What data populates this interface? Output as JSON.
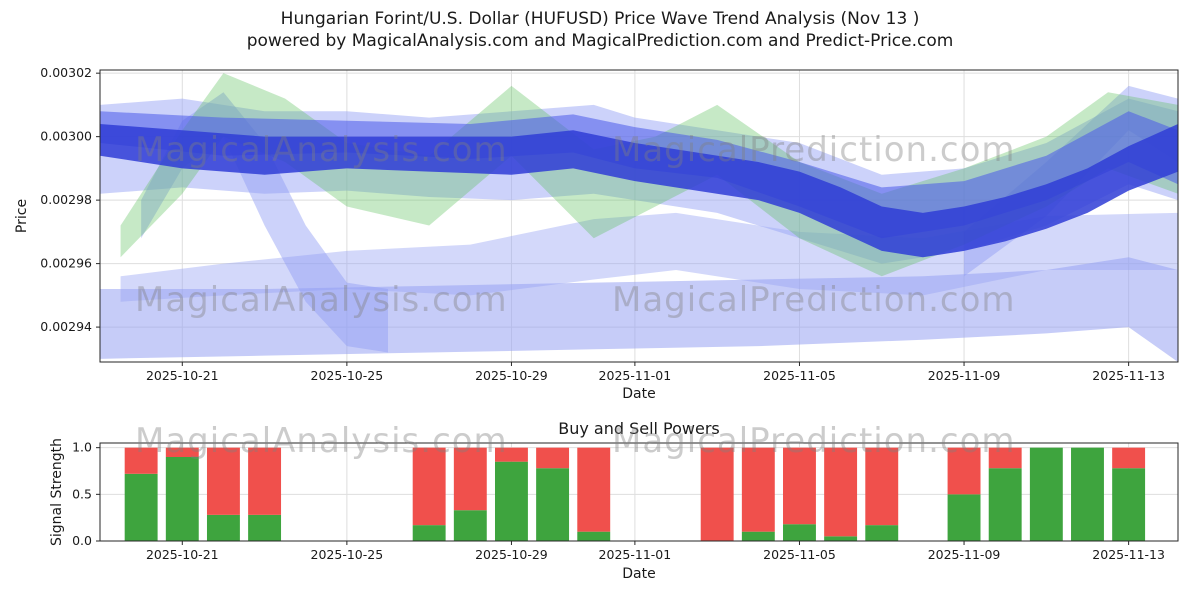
{
  "title": {
    "line1": "Hungarian Forint/U.S. Dollar (HUFUSD) Price Wave Trend Analysis (Nov 13 )",
    "line2": "powered by MagicalAnalysis.com and MagicalPrediction.com and Predict-Price.com"
  },
  "watermarks": {
    "left": "MagicalAnalysis.com",
    "right": "MagicalPrediction.com"
  },
  "chart_data": [
    {
      "type": "area",
      "title": "",
      "xlabel": "Date",
      "ylabel": "Price",
      "grid": true,
      "x_domain": [
        0,
        26.2
      ],
      "ylim": [
        0.002929,
        0.003021
      ],
      "y_ticks": [
        0.00294,
        0.00296,
        0.00298,
        0.003,
        0.00302
      ],
      "y_tick_labels": [
        "0.00294",
        "0.00296",
        "0.00298",
        "0.00300",
        "0.00302"
      ],
      "x_ticks": [
        {
          "day": 2,
          "label": "2025-10-21"
        },
        {
          "day": 6,
          "label": "2025-10-25"
        },
        {
          "day": 10,
          "label": "2025-10-29"
        },
        {
          "day": 13,
          "label": "2025-11-01"
        },
        {
          "day": 17,
          "label": "2025-11-05"
        },
        {
          "day": 21,
          "label": "2025-11-09"
        },
        {
          "day": 25,
          "label": "2025-11-13"
        }
      ],
      "bands": [
        {
          "name": "lower-forecast-band",
          "color": "#97a2f2",
          "opacity": 0.55,
          "points": [
            [
              0,
              0.00293,
              0.002952
            ],
            [
              4,
              0.002931,
              0.002952
            ],
            [
              8,
              0.002932,
              0.002953
            ],
            [
              12,
              0.002933,
              0.002954
            ],
            [
              16,
              0.002934,
              0.002955
            ],
            [
              20,
              0.002936,
              0.002956
            ],
            [
              23,
              0.002938,
              0.002958
            ],
            [
              25,
              0.00294,
              0.002962
            ],
            [
              26.2,
              0.002929,
              0.002958
            ]
          ]
        },
        {
          "name": "mid-wave-band",
          "color": "#97a2f2",
          "opacity": 0.42,
          "points": [
            [
              0.5,
              0.002948,
              0.002956
            ],
            [
              3,
              0.00295,
              0.00296
            ],
            [
              6,
              0.002952,
              0.002964
            ],
            [
              9,
              0.00295,
              0.002966
            ],
            [
              12,
              0.002955,
              0.002974
            ],
            [
              14,
              0.002958,
              0.002976
            ],
            [
              17,
              0.002952,
              0.00297
            ],
            [
              20,
              0.00295,
              0.002968
            ],
            [
              23,
              0.002958,
              0.002975
            ],
            [
              26.2,
              0.002958,
              0.002976
            ]
          ]
        },
        {
          "name": "outer-wave-band",
          "color": "#9aa6f5",
          "opacity": 0.5,
          "points": [
            [
              0,
              0.002982,
              0.00301
            ],
            [
              2,
              0.002984,
              0.003012
            ],
            [
              4,
              0.002982,
              0.003008
            ],
            [
              6,
              0.002983,
              0.003008
            ],
            [
              8,
              0.002981,
              0.003006
            ],
            [
              10,
              0.00298,
              0.003008
            ],
            [
              12,
              0.002982,
              0.00301
            ],
            [
              13,
              0.00298,
              0.003006
            ],
            [
              15,
              0.002976,
              0.003002
            ],
            [
              17,
              0.002968,
              0.002998
            ],
            [
              19,
              0.00296,
              0.002988
            ],
            [
              21,
              0.002964,
              0.00299
            ],
            [
              23,
              0.002972,
              0.002998
            ],
            [
              25,
              0.002985,
              0.003012
            ],
            [
              26.2,
              0.00298,
              0.003008
            ]
          ]
        },
        {
          "name": "descending-cross-band",
          "color": "#8f9bf5",
          "opacity": 0.45,
          "points": [
            [
              1,
              0.002968,
              0.00298
            ],
            [
              2,
              0.00299,
              0.003005
            ],
            [
              3,
              0.003,
              0.003014
            ],
            [
              4,
              0.002972,
              0.002998
            ],
            [
              5,
              0.002948,
              0.002972
            ],
            [
              6,
              0.002934,
              0.002954
            ],
            [
              7,
              0.002932,
              0.002952
            ]
          ]
        },
        {
          "name": "right-cross-band",
          "color": "#8f9bf5",
          "opacity": 0.45,
          "points": [
            [
              21,
              0.002956,
              0.00297
            ],
            [
              23,
              0.002975,
              0.002992
            ],
            [
              25,
              0.003002,
              0.003016
            ],
            [
              26.2,
              0.002992,
              0.003012
            ]
          ]
        },
        {
          "name": "green-wave-band",
          "color": "#5cbf5c",
          "opacity": 0.35,
          "points": [
            [
              0.5,
              0.002962,
              0.002972
            ],
            [
              2,
              0.002982,
              0.003002
            ],
            [
              3,
              0.003,
              0.00302
            ],
            [
              4.5,
              0.002992,
              0.003012
            ],
            [
              6,
              0.002978,
              0.002998
            ],
            [
              8,
              0.002972,
              0.002994
            ],
            [
              10,
              0.002994,
              0.003016
            ],
            [
              12,
              0.002968,
              0.002996
            ],
            [
              13.5,
              0.002978,
              0.003
            ],
            [
              15,
              0.002988,
              0.00301
            ],
            [
              17,
              0.002968,
              0.002992
            ],
            [
              19,
              0.002956,
              0.002982
            ],
            [
              21,
              0.002966,
              0.00299
            ],
            [
              23,
              0.002978,
              0.003
            ],
            [
              24.5,
              0.00299,
              0.003014
            ],
            [
              26.2,
              0.002982,
              0.00301
            ]
          ]
        },
        {
          "name": "secondary-trend-band",
          "color": "#4a59ea",
          "opacity": 0.55,
          "points": [
            [
              0,
              0.002998,
              0.003008
            ],
            [
              3,
              0.002994,
              0.003006
            ],
            [
              6,
              0.002995,
              0.003005
            ],
            [
              9,
              0.002993,
              0.003004
            ],
            [
              11.5,
              0.002995,
              0.003007
            ],
            [
              13,
              0.00299,
              0.003003
            ],
            [
              15,
              0.002987,
              0.002999
            ],
            [
              17,
              0.002978,
              0.002992
            ],
            [
              19,
              0.002968,
              0.002984
            ],
            [
              21,
              0.002972,
              0.002986
            ],
            [
              23,
              0.00298,
              0.002994
            ],
            [
              25,
              0.002992,
              0.003008
            ],
            [
              26.2,
              0.002985,
              0.003002
            ]
          ]
        },
        {
          "name": "main-trend-band",
          "color": "#2f3dd6",
          "opacity": 0.85,
          "points": [
            [
              0,
              0.002994,
              0.003004
            ],
            [
              2,
              0.00299,
              0.003002
            ],
            [
              4,
              0.002988,
              0.003
            ],
            [
              6,
              0.00299,
              0.003
            ],
            [
              8,
              0.002989,
              0.003
            ],
            [
              10,
              0.002988,
              0.003
            ],
            [
              11.5,
              0.00299,
              0.003002
            ],
            [
              13,
              0.002986,
              0.002998
            ],
            [
              14.5,
              0.002983,
              0.002995
            ],
            [
              16,
              0.00298,
              0.002992
            ],
            [
              17,
              0.002976,
              0.002989
            ],
            [
              18,
              0.00297,
              0.002984
            ],
            [
              19,
              0.002964,
              0.002978
            ],
            [
              20,
              0.002962,
              0.002976
            ],
            [
              21,
              0.002964,
              0.002978
            ],
            [
              22,
              0.002967,
              0.002981
            ],
            [
              23,
              0.002971,
              0.002985
            ],
            [
              24,
              0.002976,
              0.00299
            ],
            [
              25,
              0.002983,
              0.002997
            ],
            [
              26.2,
              0.002989,
              0.003004
            ]
          ]
        }
      ]
    },
    {
      "type": "bar",
      "title": "Buy and Sell Powers",
      "xlabel": "Date",
      "ylabel": "Signal Strength",
      "grid": true,
      "x_domain": [
        0,
        26.2
      ],
      "ylim": [
        0,
        1.05
      ],
      "y_ticks": [
        0,
        0.5,
        1
      ],
      "y_tick_labels": [
        "0.0",
        "0.5",
        "1.0"
      ],
      "x_ticks": [
        {
          "day": 2,
          "label": "2025-10-21"
        },
        {
          "day": 6,
          "label": "2025-10-25"
        },
        {
          "day": 10,
          "label": "2025-10-29"
        },
        {
          "day": 13,
          "label": "2025-11-01"
        },
        {
          "day": 17,
          "label": "2025-11-05"
        },
        {
          "day": 21,
          "label": "2025-11-09"
        },
        {
          "day": 25,
          "label": "2025-11-13"
        }
      ],
      "bar_width": 0.8,
      "colors": {
        "buy": "#3ea43e",
        "sell": "#f0504c"
      },
      "bars": [
        {
          "date": "2025-10-20",
          "day": 1,
          "buy": 0.72,
          "sell": 0.28
        },
        {
          "date": "2025-10-21",
          "day": 2,
          "buy": 0.9,
          "sell": 0.1
        },
        {
          "date": "2025-10-22",
          "day": 3,
          "buy": 0.28,
          "sell": 0.72
        },
        {
          "date": "2025-10-23",
          "day": 4,
          "buy": 0.28,
          "sell": 0.72
        },
        {
          "date": "2025-10-27",
          "day": 8,
          "buy": 0.17,
          "sell": 0.83
        },
        {
          "date": "2025-10-28",
          "day": 9,
          "buy": 0.33,
          "sell": 0.67
        },
        {
          "date": "2025-10-29",
          "day": 10,
          "buy": 0.85,
          "sell": 0.15
        },
        {
          "date": "2025-10-30",
          "day": 11,
          "buy": 0.78,
          "sell": 0.22
        },
        {
          "date": "2025-10-31",
          "day": 12,
          "buy": 0.1,
          "sell": 0.9
        },
        {
          "date": "2025-11-03",
          "day": 15,
          "buy": 0.0,
          "sell": 1.0
        },
        {
          "date": "2025-11-04",
          "day": 16,
          "buy": 0.1,
          "sell": 0.9
        },
        {
          "date": "2025-11-05",
          "day": 17,
          "buy": 0.18,
          "sell": 0.82
        },
        {
          "date": "2025-11-06",
          "day": 18,
          "buy": 0.05,
          "sell": 0.95
        },
        {
          "date": "2025-11-07",
          "day": 19,
          "buy": 0.17,
          "sell": 0.83
        },
        {
          "date": "2025-11-09",
          "day": 21,
          "buy": 0.5,
          "sell": 0.5
        },
        {
          "date": "2025-11-10",
          "day": 22,
          "buy": 0.78,
          "sell": 0.22
        },
        {
          "date": "2025-11-11",
          "day": 23,
          "buy": 1.0,
          "sell": 0.0
        },
        {
          "date": "2025-11-12",
          "day": 24,
          "buy": 1.0,
          "sell": 0.0
        },
        {
          "date": "2025-11-13",
          "day": 25,
          "buy": 0.78,
          "sell": 0.22
        }
      ]
    }
  ]
}
